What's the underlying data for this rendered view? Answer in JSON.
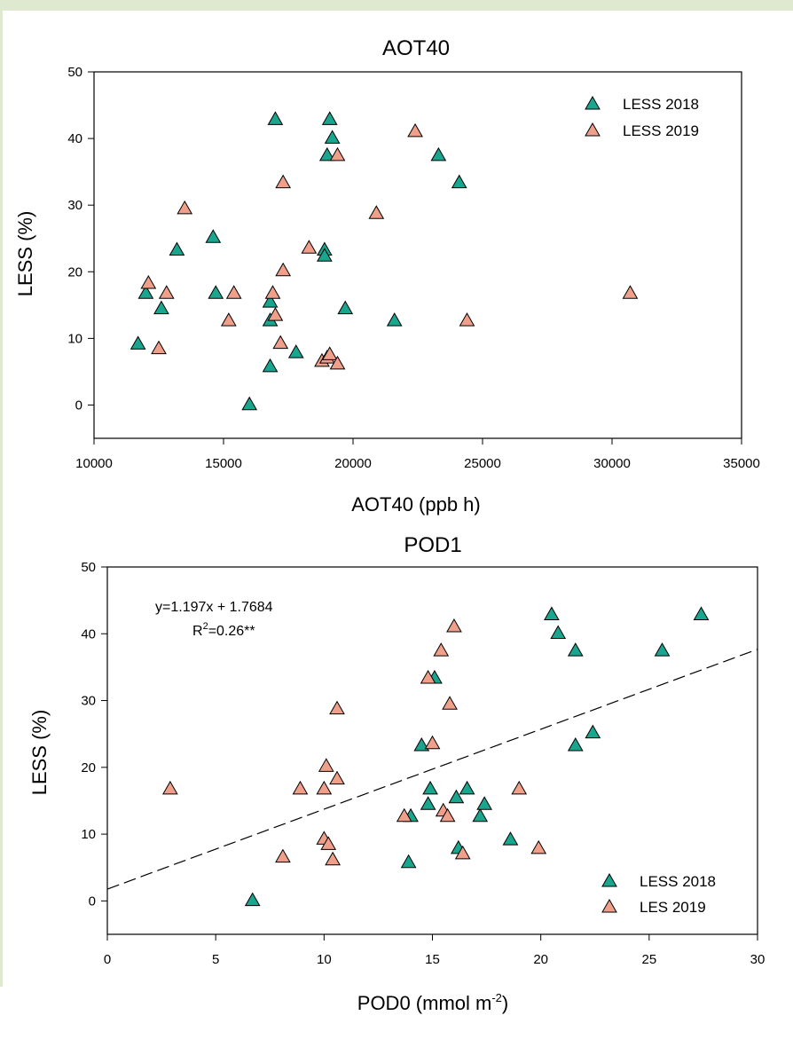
{
  "chart_data": [
    {
      "type": "scatter",
      "title": "AOT40",
      "xlabel": "AOT40 (ppb h)",
      "ylabel": "LESS (%)",
      "xlim": [
        10000,
        35000
      ],
      "ylim": [
        -5,
        50
      ],
      "xticks": [
        "10000",
        "15000",
        "20000",
        "25000",
        "30000",
        "35000"
      ],
      "yticks": [
        "0",
        "10",
        "20",
        "30",
        "40",
        "50"
      ],
      "grid": false,
      "legend_position": "top-right",
      "series": [
        {
          "name": "LESS 2018",
          "color": "#1aa58e",
          "marker": "triangle",
          "points": [
            [
              11700,
              9.2
            ],
            [
              12000,
              16.8
            ],
            [
              12600,
              14.5
            ],
            [
              13200,
              23.3
            ],
            [
              14600,
              25.2
            ],
            [
              14700,
              16.8
            ],
            [
              16000,
              0.1
            ],
            [
              16800,
              15.5
            ],
            [
              16800,
              12.7
            ],
            [
              16800,
              5.8
            ],
            [
              17000,
              42.9
            ],
            [
              17800,
              7.9
            ],
            [
              18900,
              23.3
            ],
            [
              18900,
              22.4
            ],
            [
              19000,
              37.5
            ],
            [
              19100,
              42.9
            ],
            [
              19200,
              40.1
            ],
            [
              19700,
              14.5
            ],
            [
              21600,
              12.7
            ],
            [
              23300,
              37.5
            ],
            [
              24100,
              33.4
            ]
          ]
        },
        {
          "name": "LESS 2019",
          "color": "#f0a08a",
          "marker": "triangle",
          "points": [
            [
              12100,
              18.3
            ],
            [
              12500,
              8.5
            ],
            [
              12800,
              16.8
            ],
            [
              13500,
              29.5
            ],
            [
              15200,
              12.7
            ],
            [
              15400,
              16.8
            ],
            [
              16900,
              16.8
            ],
            [
              17000,
              13.5
            ],
            [
              17200,
              9.3
            ],
            [
              17300,
              20.2
            ],
            [
              17300,
              33.4
            ],
            [
              18300,
              23.6
            ],
            [
              18800,
              6.6
            ],
            [
              19000,
              7.1
            ],
            [
              19100,
              7.6
            ],
            [
              19400,
              6.2
            ],
            [
              19400,
              37.5
            ],
            [
              20900,
              28.8
            ],
            [
              22400,
              41.1
            ],
            [
              24400,
              12.7
            ],
            [
              30700,
              16.8
            ]
          ]
        }
      ]
    },
    {
      "type": "scatter",
      "title": "POD1",
      "xlabel": "POD0 (mmol m",
      "xlabel_sup": "-2",
      "xlabel_end": ")",
      "ylabel": "LESS (%)",
      "xlim": [
        0,
        30
      ],
      "ylim": [
        -5,
        50
      ],
      "xticks": [
        "0",
        "5",
        "10",
        "15",
        "20",
        "25",
        "30"
      ],
      "yticks": [
        "0",
        "10",
        "20",
        "30",
        "40",
        "50"
      ],
      "grid": false,
      "legend_position": "bottom-right",
      "annotation": {
        "equation": "y=1.197x + 1.7684",
        "r2_prefix": "R",
        "r2_sup": "2",
        "r2_value": "=0.26**"
      },
      "regression": {
        "slope": 1.197,
        "intercept": 1.7684,
        "style": "dashed"
      },
      "series": [
        {
          "name": "LESS 2018",
          "color": "#1aa58e",
          "marker": "triangle",
          "points": [
            [
              6.7,
              0.1
            ],
            [
              13.9,
              5.8
            ],
            [
              14.0,
              12.7
            ],
            [
              14.5,
              23.3
            ],
            [
              14.8,
              14.5
            ],
            [
              14.9,
              16.8
            ],
            [
              15.1,
              33.4
            ],
            [
              16.1,
              15.5
            ],
            [
              16.2,
              7.9
            ],
            [
              16.6,
              16.8
            ],
            [
              17.2,
              12.7
            ],
            [
              17.4,
              14.5
            ],
            [
              18.6,
              9.2
            ],
            [
              20.5,
              42.9
            ],
            [
              20.8,
              40.1
            ],
            [
              21.6,
              37.5
            ],
            [
              21.6,
              23.3
            ],
            [
              22.4,
              25.2
            ],
            [
              25.6,
              37.5
            ],
            [
              27.4,
              42.9
            ]
          ]
        },
        {
          "name": "LES 2019",
          "color": "#f0a08a",
          "marker": "triangle",
          "points": [
            [
              2.9,
              16.8
            ],
            [
              8.1,
              6.6
            ],
            [
              8.9,
              16.8
            ],
            [
              10.0,
              9.3
            ],
            [
              10.0,
              16.8
            ],
            [
              10.1,
              20.2
            ],
            [
              10.2,
              8.5
            ],
            [
              10.4,
              6.2
            ],
            [
              10.6,
              18.3
            ],
            [
              10.6,
              28.8
            ],
            [
              13.7,
              12.7
            ],
            [
              14.8,
              33.4
            ],
            [
              15.0,
              23.6
            ],
            [
              15.4,
              37.5
            ],
            [
              15.5,
              13.5
            ],
            [
              15.7,
              12.7
            ],
            [
              15.8,
              29.5
            ],
            [
              16.0,
              41.1
            ],
            [
              16.4,
              7.1
            ],
            [
              19.0,
              16.8
            ],
            [
              19.9,
              7.9
            ]
          ]
        }
      ]
    }
  ]
}
